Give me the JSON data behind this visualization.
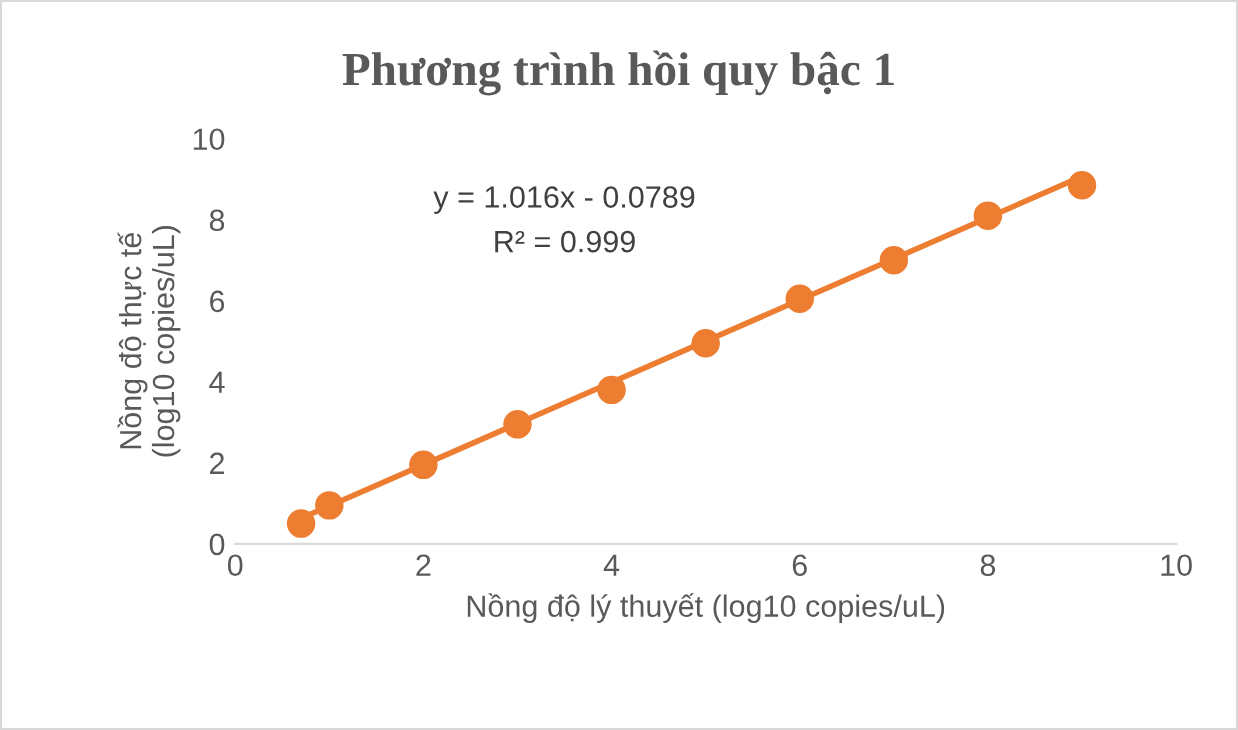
{
  "chart_data": {
    "type": "scatter",
    "title": "Phương trình hồi quy bậc 1",
    "xlabel": "Nồng độ lý thuyết (log10 copies/uL)",
    "ylabel": "Nồng độ thực tế\n(log10 copies/uL)",
    "x": [
      0.7,
      1,
      2,
      3,
      4,
      5,
      6,
      7,
      8,
      9
    ],
    "series": [
      {
        "color": "#ed7d31",
        "values": [
          0.5,
          0.95,
          1.95,
          2.95,
          3.8,
          4.95,
          6.05,
          7.0,
          8.1,
          8.85
        ]
      },
      {
        "type": "line",
        "color": "#ed7d31",
        "x": [
          0.7,
          9
        ],
        "values": [
          0.63,
          9.07
        ],
        "marker": "none"
      }
    ],
    "annotations": [
      "y = 1.016x - 0.0789",
      "R² = 0.999"
    ],
    "xlim": [
      0,
      10
    ],
    "xticks": [
      0,
      2,
      4,
      6,
      8,
      10
    ],
    "ylim": [
      0,
      10
    ],
    "yticks": [
      0,
      2,
      4,
      6,
      8,
      10
    ],
    "marker": "circle",
    "grid": false,
    "legend": false
  }
}
